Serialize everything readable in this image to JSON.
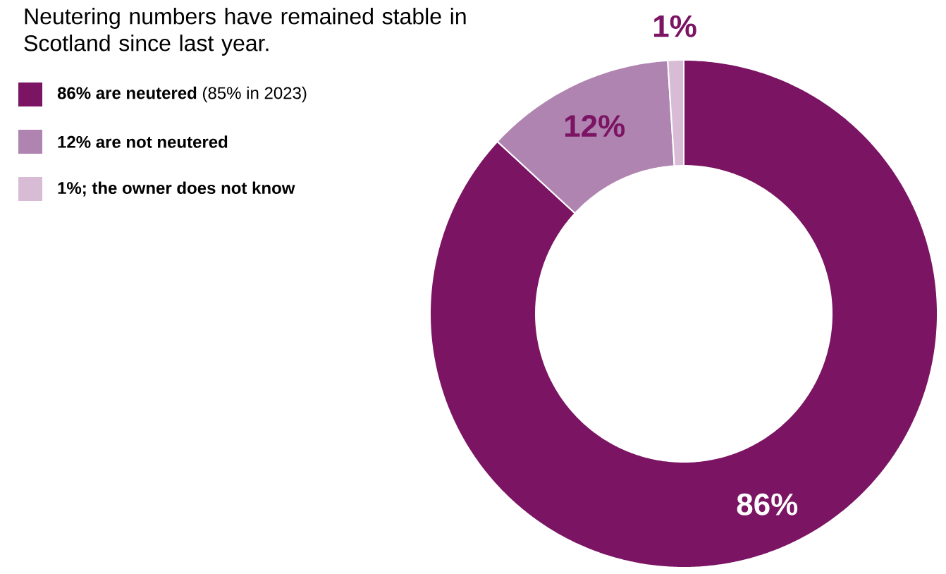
{
  "chart_data": {
    "type": "donut",
    "title": "Neutering numbers have remained stable in Scotland since last year.",
    "categories": [
      "**86% are neutered** (85% in 2023)",
      "12% are not neutered",
      "1%; the owner does not know"
    ],
    "values": [
      86,
      12,
      1
    ],
    "colors": [
      "#7a1463",
      "#b084b0",
      "#d8bcd6"
    ],
    "value_labels": [
      "86%",
      "12%",
      "1%"
    ],
    "legend": "top left"
  }
}
